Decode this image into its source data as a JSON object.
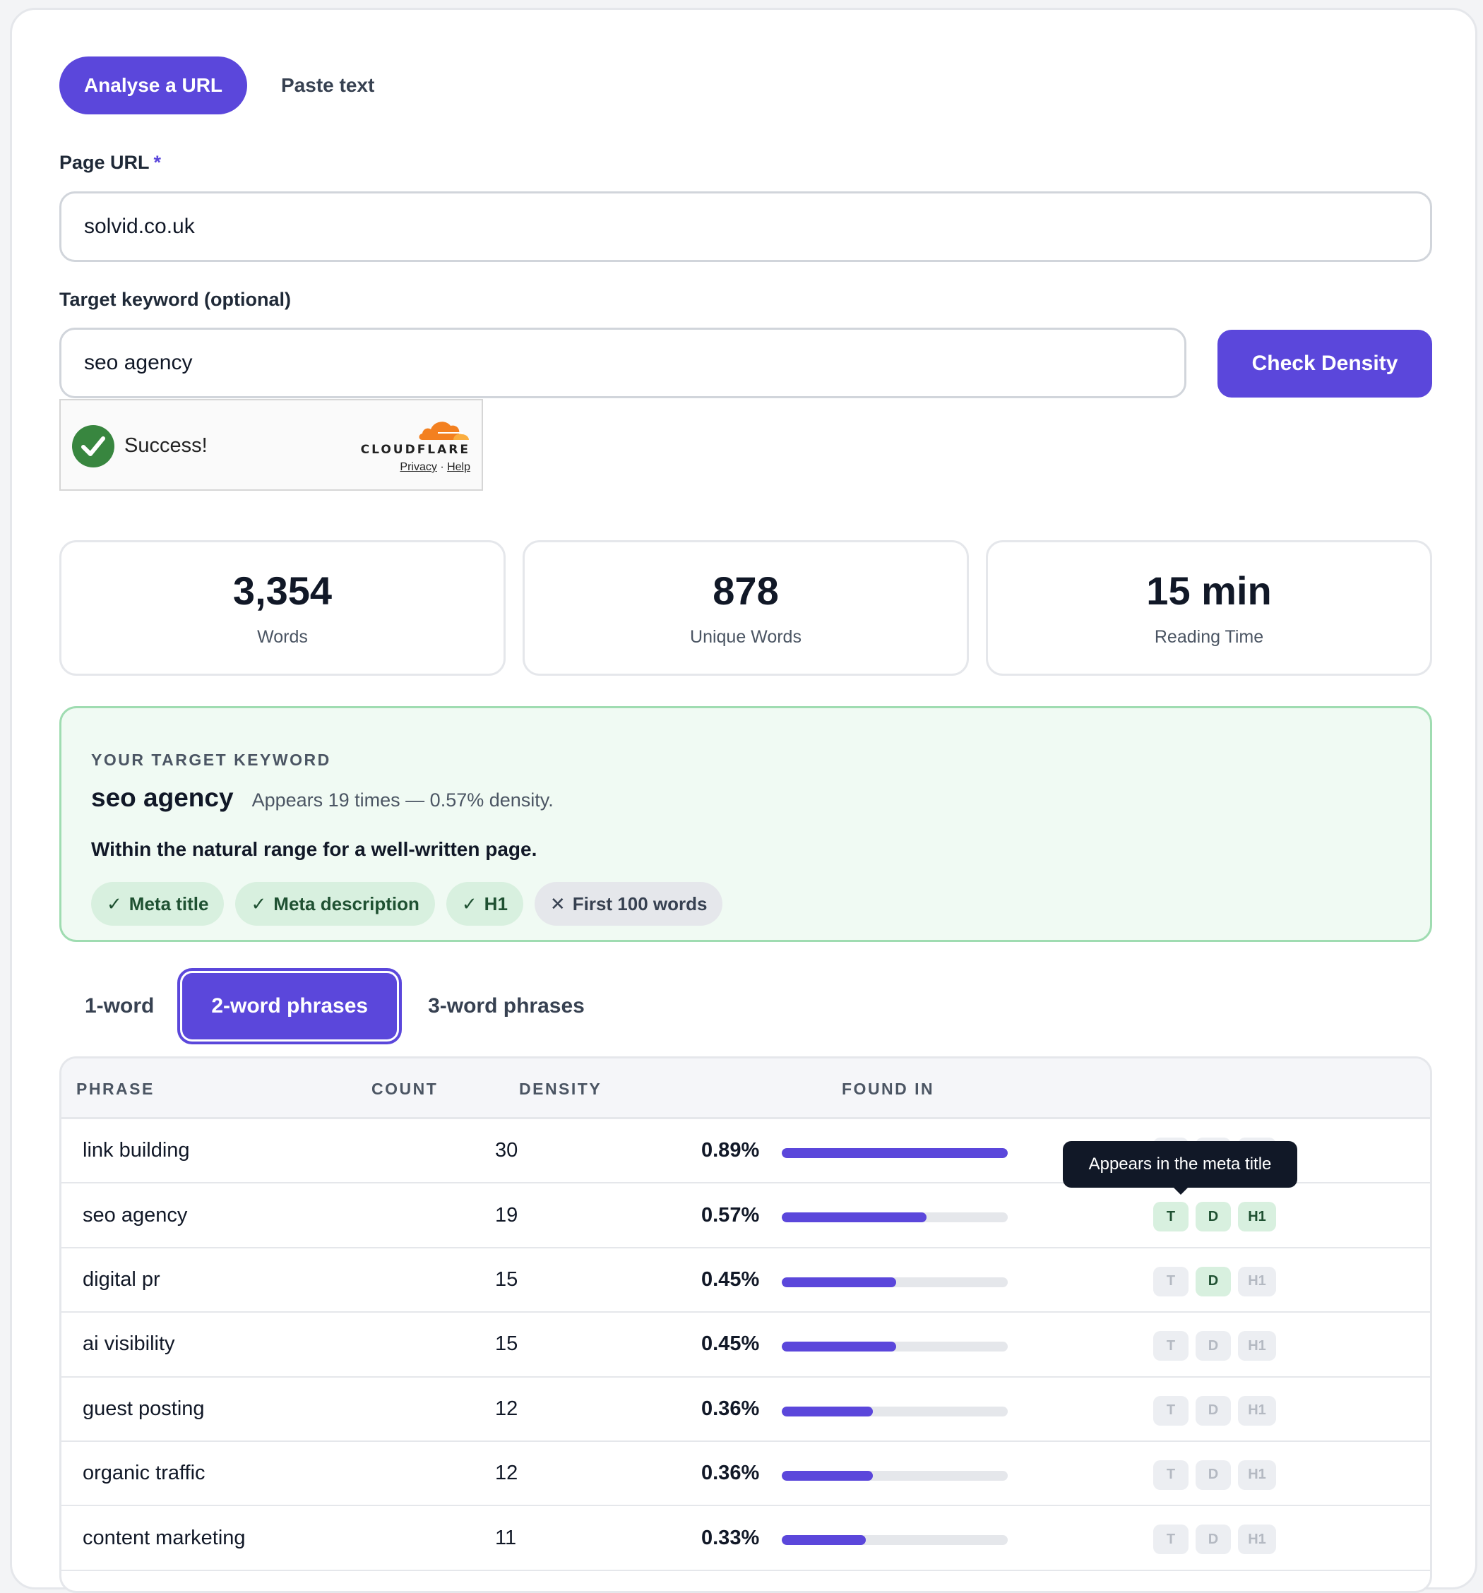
{
  "mode_tabs": {
    "analyse_url": "Analyse a URL",
    "paste_text": "Paste text"
  },
  "form": {
    "url_label": "Page URL",
    "required_mark": "*",
    "url_value": "solvid.co.uk",
    "keyword_label": "Target keyword (optional)",
    "keyword_value": "seo agency",
    "submit_label": "Check Density"
  },
  "captcha": {
    "status": "Success!",
    "brand": "CLOUDFLARE",
    "privacy": "Privacy",
    "separator": "·",
    "help": "Help",
    "check_color": "#38863f",
    "cloud_color": "#f38020"
  },
  "stats": [
    {
      "value": "3,354",
      "caption": "Words"
    },
    {
      "value": "878",
      "caption": "Unique Words"
    },
    {
      "value": "15 min",
      "caption": "Reading Time"
    }
  ],
  "target_keyword": {
    "heading": "YOUR TARGET KEYWORD",
    "keyword": "seo agency",
    "summary": "Appears 19 times — 0.57% density.",
    "note": "Within the natural range for a well-written page.",
    "checks": [
      {
        "mark": "✓",
        "label": "Meta title",
        "ok": true
      },
      {
        "mark": "✓",
        "label": "Meta description",
        "ok": true
      },
      {
        "mark": "✓",
        "label": "H1",
        "ok": true
      },
      {
        "mark": "✕",
        "label": "First 100 words",
        "ok": false
      }
    ]
  },
  "phrase_tabs": {
    "one": "1-word",
    "two": "2-word phrases",
    "three": "3-word phrases",
    "active": "two"
  },
  "table": {
    "headers": {
      "phrase": "PHRASE",
      "count": "COUNT",
      "density": "DENSITY",
      "found_in": "FOUND IN"
    },
    "tag_labels": {
      "title": "T",
      "description": "D",
      "h1": "H1"
    },
    "bar_max_percent": 0.89,
    "rows": [
      {
        "phrase": "link building",
        "count": "30",
        "density": "0.89%",
        "density_value": 0.89,
        "found": [
          false,
          false,
          false
        ]
      },
      {
        "phrase": "seo agency",
        "count": "19",
        "density": "0.57%",
        "density_value": 0.57,
        "found": [
          true,
          true,
          true
        ]
      },
      {
        "phrase": "digital pr",
        "count": "15",
        "density": "0.45%",
        "density_value": 0.45,
        "found": [
          false,
          true,
          false
        ]
      },
      {
        "phrase": "ai visibility",
        "count": "15",
        "density": "0.45%",
        "density_value": 0.45,
        "found": [
          false,
          false,
          false
        ]
      },
      {
        "phrase": "guest posting",
        "count": "12",
        "density": "0.36%",
        "density_value": 0.36,
        "found": [
          false,
          false,
          false
        ]
      },
      {
        "phrase": "organic traffic",
        "count": "12",
        "density": "0.36%",
        "density_value": 0.36,
        "found": [
          false,
          false,
          false
        ]
      },
      {
        "phrase": "content marketing",
        "count": "11",
        "density": "0.33%",
        "density_value": 0.33,
        "found": [
          false,
          false,
          false
        ]
      }
    ]
  },
  "tooltip": {
    "text": "Appears in the meta title"
  },
  "colors": {
    "accent": "#5b47db",
    "success_bg": "#f0faf3",
    "success_border": "#9fdcb1"
  }
}
